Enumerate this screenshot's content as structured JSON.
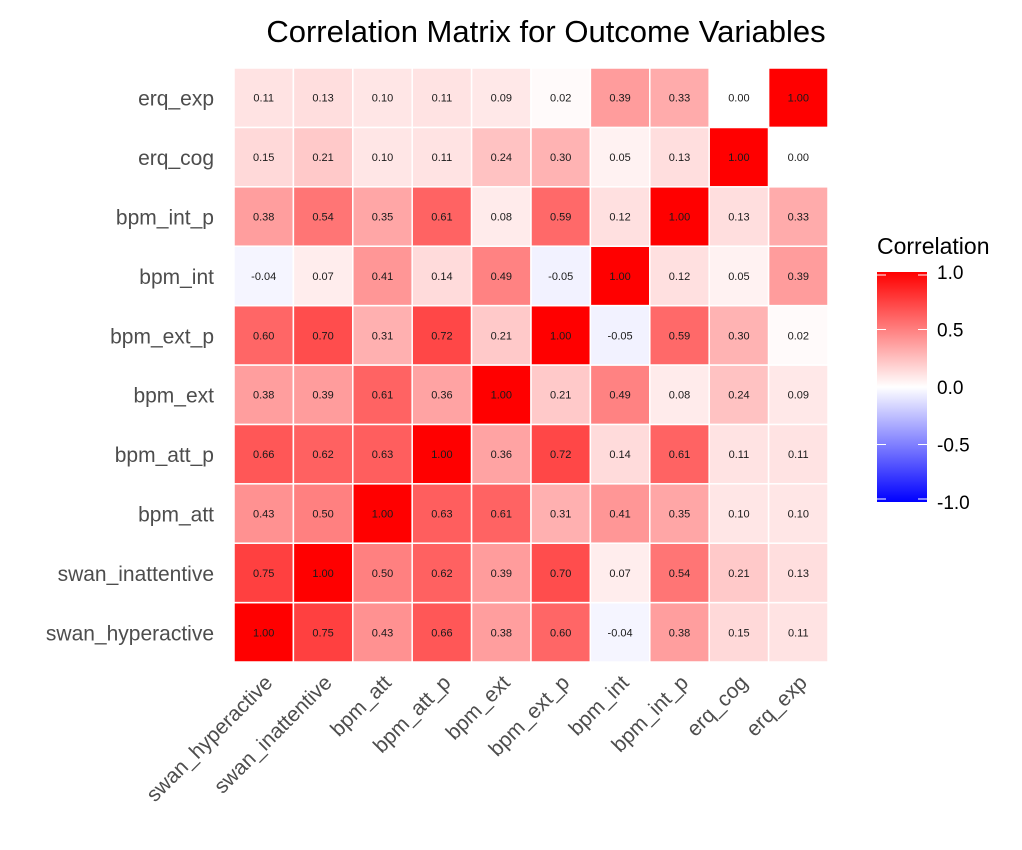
{
  "chart_data": {
    "type": "heatmap",
    "title": "Correlation Matrix for Outcome Variables",
    "x_categories": [
      "swan_hyperactive",
      "swan_inattentive",
      "bpm_att",
      "bpm_att_p",
      "bpm_ext",
      "bpm_ext_p",
      "bpm_int",
      "bpm_int_p",
      "erq_cog",
      "erq_exp"
    ],
    "y_categories": [
      "swan_hyperactive",
      "swan_inattentive",
      "bpm_att",
      "bpm_att_p",
      "bpm_ext",
      "bpm_ext_p",
      "bpm_int",
      "bpm_int_p",
      "erq_cog",
      "erq_exp"
    ],
    "values": [
      [
        1.0,
        0.75,
        0.43,
        0.66,
        0.38,
        0.6,
        -0.04,
        0.38,
        0.15,
        0.11
      ],
      [
        0.75,
        1.0,
        0.5,
        0.62,
        0.39,
        0.7,
        0.07,
        0.54,
        0.21,
        0.13
      ],
      [
        0.43,
        0.5,
        1.0,
        0.63,
        0.61,
        0.31,
        0.41,
        0.35,
        0.1,
        0.1
      ],
      [
        0.66,
        0.62,
        0.63,
        1.0,
        0.36,
        0.72,
        0.14,
        0.61,
        0.11,
        0.11
      ],
      [
        0.38,
        0.39,
        0.61,
        0.36,
        1.0,
        0.21,
        0.49,
        0.08,
        0.24,
        0.09
      ],
      [
        0.6,
        0.7,
        0.31,
        0.72,
        0.21,
        1.0,
        -0.05,
        0.59,
        0.3,
        0.02
      ],
      [
        -0.04,
        0.07,
        0.41,
        0.14,
        0.49,
        -0.05,
        1.0,
        0.12,
        0.05,
        0.39
      ],
      [
        0.38,
        0.54,
        0.35,
        0.61,
        0.08,
        0.59,
        0.12,
        1.0,
        0.13,
        0.33
      ],
      [
        0.15,
        0.21,
        0.1,
        0.11,
        0.24,
        0.3,
        0.05,
        0.13,
        1.0,
        0.0
      ],
      [
        0.11,
        0.13,
        0.1,
        0.11,
        0.09,
        0.02,
        0.39,
        0.33,
        0.0,
        1.0
      ]
    ],
    "legend": {
      "title": "Correlation",
      "range": [
        -1.0,
        1.0
      ],
      "ticks": [
        "1.0",
        "0.5",
        "0.0",
        "-0.5",
        "-1.0"
      ],
      "tick_values": [
        1.0,
        0.5,
        0.0,
        -0.5,
        -1.0
      ],
      "placement": "right"
    },
    "colors": {
      "low": "#0000ff",
      "mid": "#ffffff",
      "high": "#ff0000"
    },
    "grid": false
  }
}
